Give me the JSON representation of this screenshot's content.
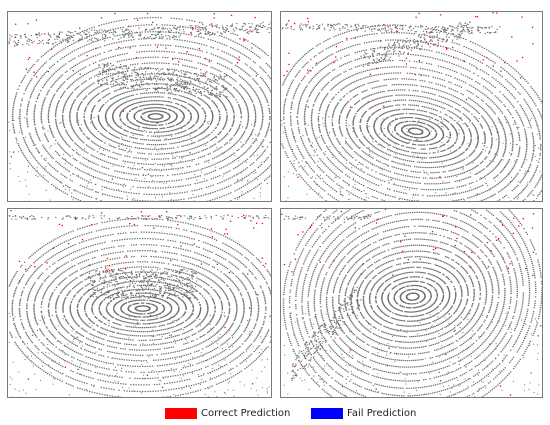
{
  "panels": [
    {
      "id": "top-left",
      "source_count": 1
    },
    {
      "id": "top-right",
      "source_count": 1
    },
    {
      "id": "bottom-left",
      "source_count": 1
    },
    {
      "id": "bottom-right",
      "source_count": 1
    }
  ],
  "colors": {
    "points": "#6e6e6e",
    "correct": "#ff0000",
    "fail": "#0000ff",
    "border": "#7a7a7a"
  },
  "legend": {
    "correct_label": "Correct Prediction",
    "fail_label": "Fail Prediction"
  }
}
